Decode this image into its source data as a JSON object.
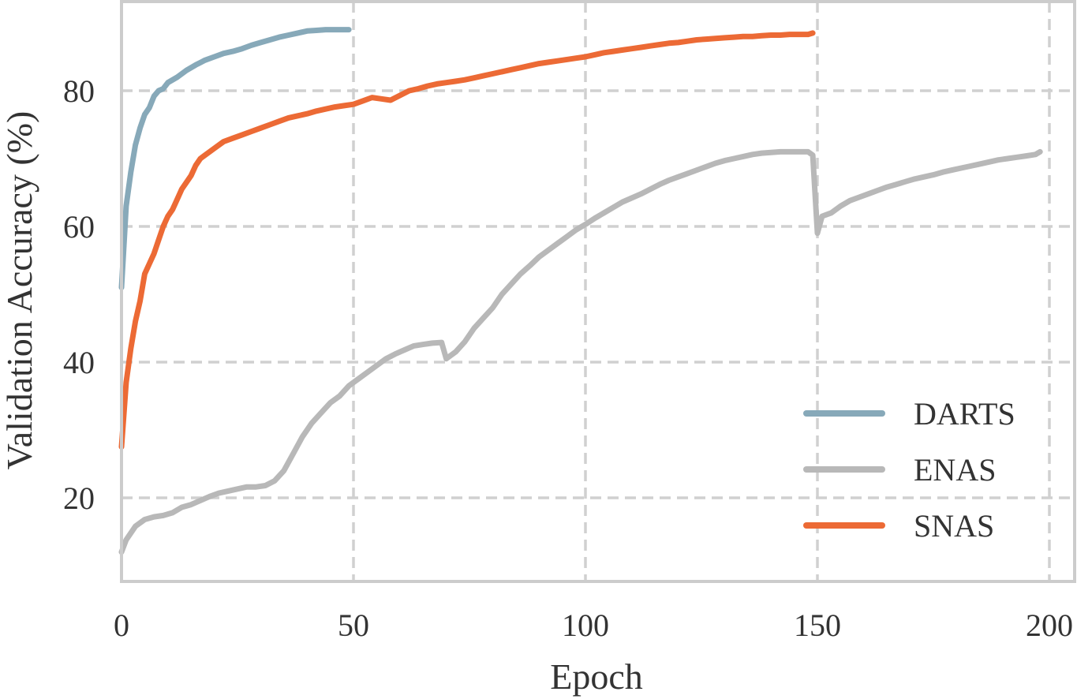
{
  "chart_data": {
    "type": "line",
    "title": "",
    "xlabel": "Epoch",
    "ylabel": "Validation Accuracy (%)",
    "xlim": [
      0,
      205
    ],
    "ylim": [
      8,
      90
    ],
    "x_ticks": [
      0,
      50,
      100,
      150,
      200
    ],
    "y_ticks": [
      20,
      40,
      60,
      80
    ],
    "grid": true,
    "legend_position": "bottom-right",
    "series": [
      {
        "name": "DARTS",
        "color": "#87a9b9",
        "x": [
          0,
          1,
          2,
          3,
          4,
          5,
          6,
          7,
          8,
          9,
          10,
          12,
          14,
          16,
          18,
          20,
          22,
          24,
          26,
          28,
          30,
          32,
          34,
          36,
          38,
          40,
          42,
          44,
          46,
          48,
          49
        ],
        "y": [
          51,
          63,
          68,
          72,
          74.5,
          76.5,
          77.5,
          79.2,
          80,
          80.3,
          81.2,
          82,
          83,
          83.8,
          84.5,
          85,
          85.5,
          85.8,
          86.2,
          86.7,
          87.1,
          87.5,
          87.9,
          88.2,
          88.5,
          88.8,
          88.9,
          89,
          89,
          89,
          89
        ]
      },
      {
        "name": "ENAS",
        "color": "#b8b8b8",
        "x": [
          0,
          1,
          3,
          5,
          7,
          9,
          11,
          13,
          15,
          17,
          19,
          21,
          23,
          25,
          27,
          29,
          31,
          33,
          35,
          37,
          39,
          41,
          43,
          45,
          47,
          49,
          51,
          53,
          55,
          57,
          59,
          61,
          63,
          65,
          67,
          69,
          70,
          72,
          74,
          76,
          78,
          80,
          82,
          84,
          86,
          88,
          90,
          92,
          94,
          96,
          98,
          100,
          102,
          104,
          106,
          108,
          110,
          112,
          114,
          116,
          118,
          120,
          122,
          124,
          126,
          128,
          130,
          132,
          134,
          136,
          138,
          140,
          142,
          144,
          146,
          148,
          149,
          150,
          151,
          153,
          155,
          157,
          159,
          161,
          163,
          165,
          167,
          169,
          171,
          173,
          175,
          177,
          179,
          181,
          183,
          185,
          187,
          189,
          191,
          193,
          195,
          197,
          198
        ],
        "y": [
          12,
          13.8,
          15.8,
          16.8,
          17.2,
          17.4,
          17.8,
          18.6,
          19,
          19.6,
          20.2,
          20.7,
          21,
          21.3,
          21.6,
          21.6,
          21.8,
          22.5,
          24,
          26.5,
          29,
          31,
          32.5,
          34,
          35,
          36.5,
          37.5,
          38.5,
          39.5,
          40.5,
          41.2,
          41.8,
          42.4,
          42.6,
          42.8,
          42.9,
          40.5,
          41.5,
          43,
          45,
          46.5,
          48,
          50,
          51.5,
          53,
          54.2,
          55.5,
          56.5,
          57.5,
          58.5,
          59.5,
          60.3,
          61.2,
          62,
          62.8,
          63.6,
          64.2,
          64.8,
          65.5,
          66.2,
          66.8,
          67.3,
          67.8,
          68.3,
          68.8,
          69.3,
          69.7,
          70,
          70.3,
          70.6,
          70.8,
          70.9,
          71,
          71,
          71,
          71,
          70.5,
          59,
          61.5,
          62,
          63,
          63.8,
          64.3,
          64.8,
          65.3,
          65.8,
          66.2,
          66.6,
          67,
          67.3,
          67.6,
          68,
          68.3,
          68.6,
          68.9,
          69.2,
          69.5,
          69.8,
          70,
          70.2,
          70.4,
          70.6,
          71
        ]
      },
      {
        "name": "SNAS",
        "color": "#ec6a35",
        "x": [
          0,
          1,
          2,
          3,
          4,
          5,
          6,
          7,
          8,
          9,
          10,
          11,
          12,
          13,
          14,
          15,
          16,
          17,
          18,
          20,
          22,
          24,
          26,
          28,
          30,
          32,
          34,
          36,
          38,
          40,
          42,
          44,
          46,
          48,
          50,
          52,
          54,
          56,
          58,
          60,
          62,
          64,
          66,
          68,
          70,
          72,
          74,
          76,
          78,
          80,
          82,
          84,
          86,
          88,
          90,
          92,
          94,
          96,
          98,
          100,
          102,
          104,
          106,
          108,
          110,
          112,
          114,
          116,
          118,
          120,
          122,
          124,
          126,
          128,
          130,
          132,
          134,
          136,
          138,
          140,
          142,
          144,
          146,
          148,
          149
        ],
        "y": [
          27.5,
          37,
          42,
          46,
          49,
          53,
          54.5,
          56,
          58,
          60,
          61.5,
          62.5,
          64,
          65.5,
          66.5,
          67.5,
          69,
          70,
          70.5,
          71.5,
          72.5,
          73,
          73.5,
          74,
          74.5,
          75,
          75.5,
          76,
          76.3,
          76.6,
          77,
          77.3,
          77.6,
          77.8,
          78,
          78.5,
          79,
          78.8,
          78.6,
          79.3,
          80,
          80.3,
          80.7,
          81,
          81.2,
          81.4,
          81.6,
          81.9,
          82.2,
          82.5,
          82.8,
          83.1,
          83.4,
          83.7,
          84,
          84.2,
          84.4,
          84.6,
          84.8,
          85,
          85.3,
          85.6,
          85.8,
          86,
          86.2,
          86.4,
          86.6,
          86.8,
          87,
          87.1,
          87.3,
          87.5,
          87.6,
          87.7,
          87.8,
          87.9,
          88,
          88,
          88.1,
          88.2,
          88.2,
          88.3,
          88.3,
          88.3,
          88.5
        ]
      }
    ]
  }
}
